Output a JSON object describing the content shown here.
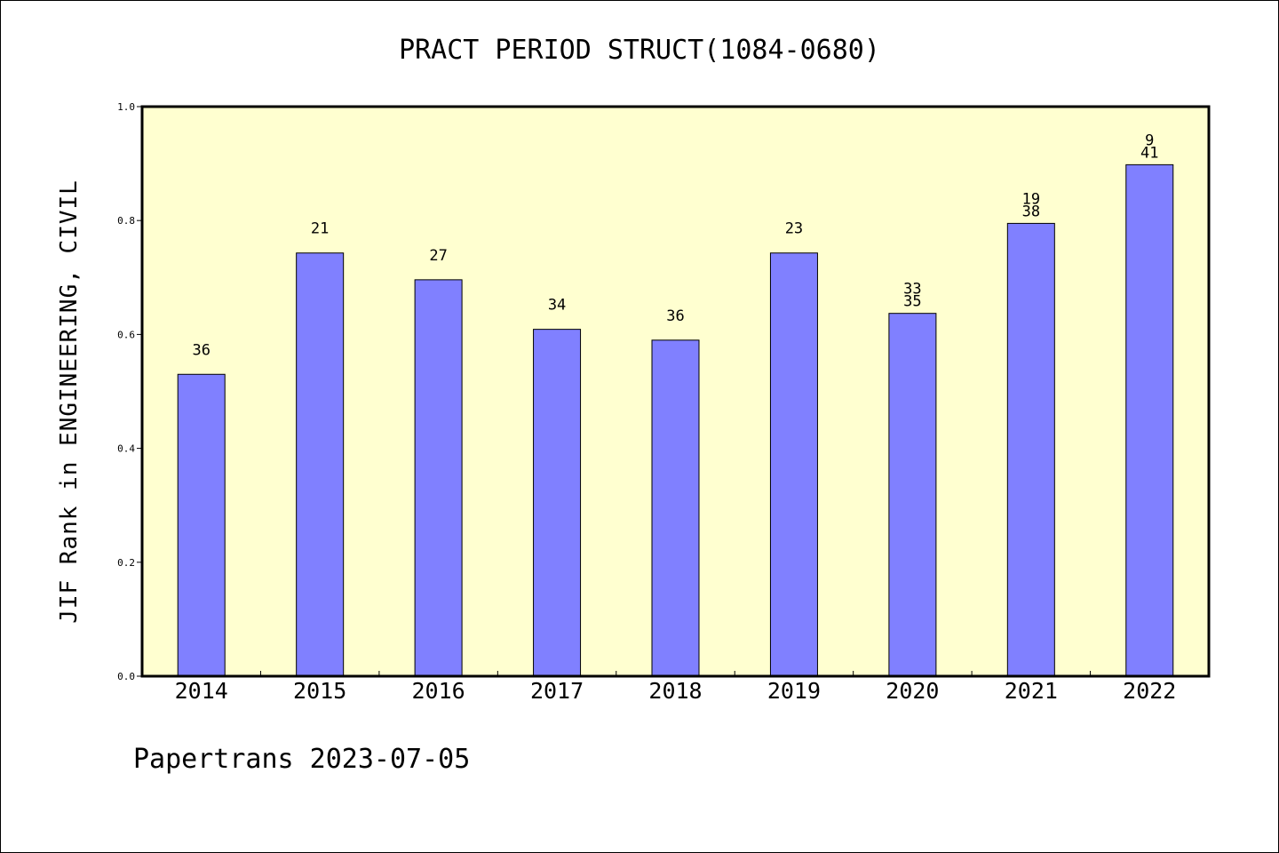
{
  "chart_data": {
    "type": "bar",
    "title": "PRACT PERIOD STRUCT(1084-0680)",
    "xlabel": "",
    "ylabel": "JIF Rank in ENGINEERING, CIVIL",
    "ylim": [
      0,
      1.0
    ],
    "yticks": [
      "0.0",
      "0.2",
      "0.4",
      "0.6",
      "0.8",
      "1.0"
    ],
    "categories": [
      "2014",
      "2015",
      "2016",
      "2017",
      "2018",
      "2019",
      "2020",
      "2021",
      "2022"
    ],
    "values": [
      0.53,
      0.743,
      0.696,
      0.609,
      0.59,
      0.743,
      0.637,
      0.795,
      0.898
    ],
    "labels": [
      [
        "36"
      ],
      [
        "21"
      ],
      [
        "27"
      ],
      [
        "34"
      ],
      [
        "36"
      ],
      [
        "23"
      ],
      [
        "33",
        "35"
      ],
      [
        "19",
        "38"
      ],
      [
        "9",
        "41"
      ]
    ],
    "bar_color": "#8080ff",
    "plot_background": "#ffffd0",
    "grid": false,
    "legend": "none"
  },
  "footer": "Papertrans 2023-07-05"
}
